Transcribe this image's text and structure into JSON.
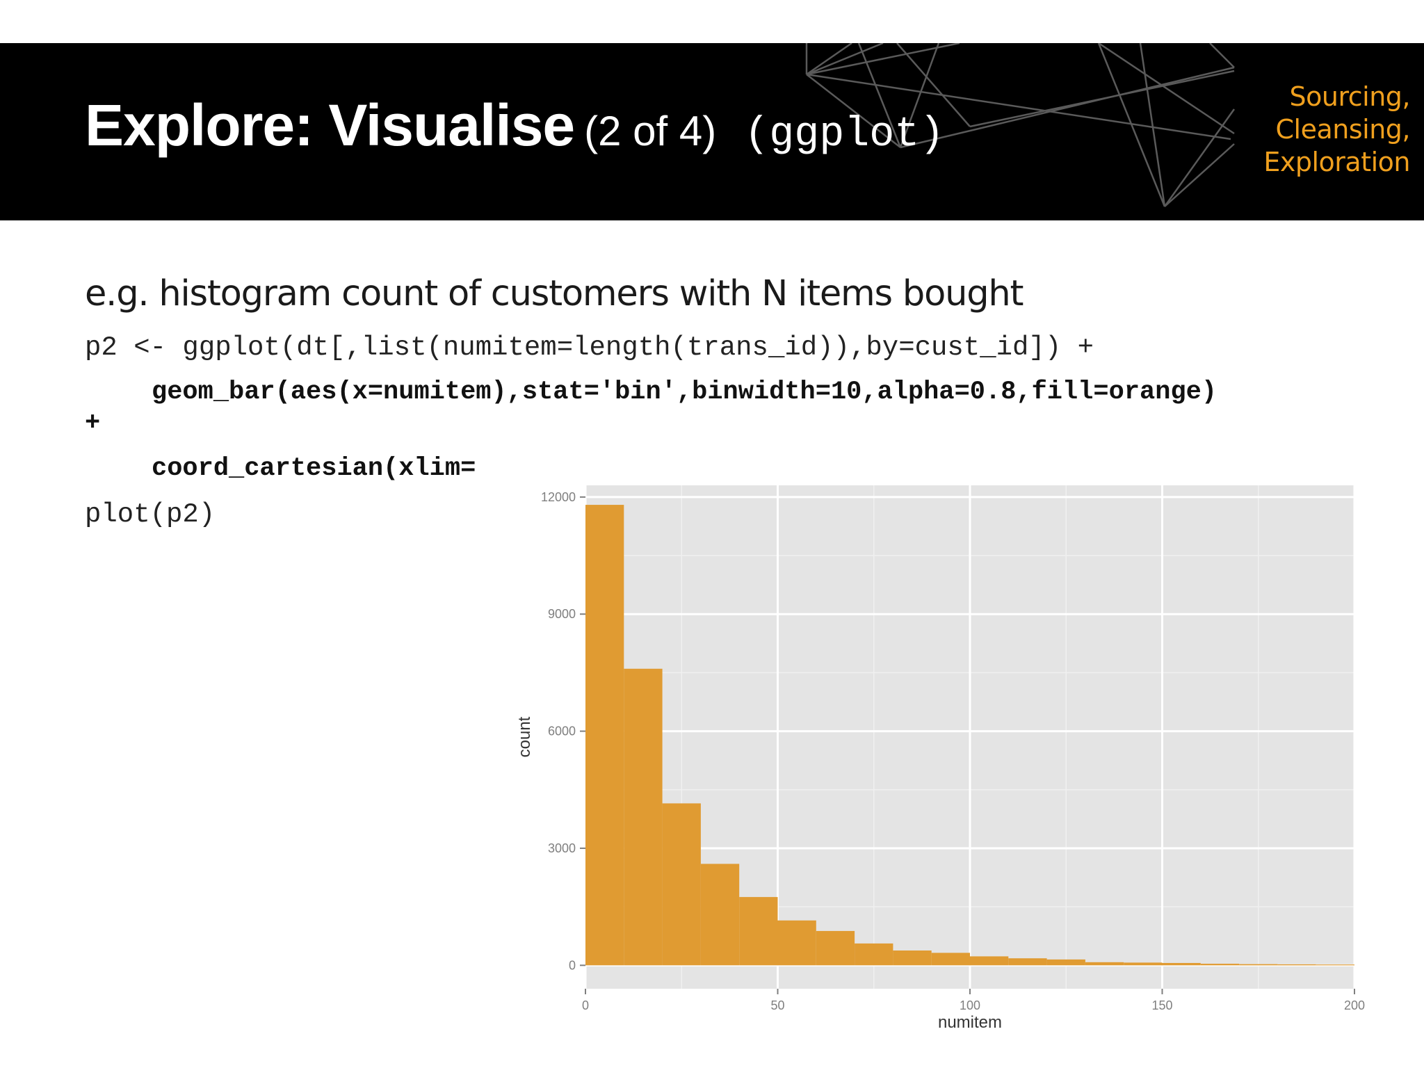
{
  "slide": {
    "title_main": "Explore: Visualise",
    "title_part": "(2 of 4)",
    "title_code": "(ggplot)",
    "section_tag": [
      "Sourcing,",
      "Cleansing,",
      "Exploration"
    ],
    "description": "e.g. histogram count of customers with N items bought"
  },
  "code": {
    "line1": "p2 <- ggplot(dt[,list(numitem=length(trans_id)),by=cust_id]) +",
    "line2": "geom_bar(aes(x=numitem),stat='bin',binwidth=10,alpha=0.8,fill=orange)",
    "line3": "+",
    "line4": "coord_cartesian(xlim=",
    "line5": "plot(p2)"
  },
  "colors": {
    "header_bg": "#000000",
    "accent": "#f0a01e",
    "bar_fill": "#e09b32",
    "panel_bg": "#e4e4e4",
    "grid": "#ffffff"
  },
  "chart_data": {
    "type": "bar",
    "xlabel": "numitem",
    "ylabel": "count",
    "xlim": [
      0,
      200
    ],
    "ylim": [
      -600,
      12300
    ],
    "x_ticks": [
      0,
      50,
      100,
      150,
      200
    ],
    "y_ticks": [
      0,
      3000,
      6000,
      9000,
      12000
    ],
    "binwidth": 10,
    "bins": [
      {
        "x0": 0,
        "x1": 10,
        "count": 11800
      },
      {
        "x0": 10,
        "x1": 20,
        "count": 7600
      },
      {
        "x0": 20,
        "x1": 30,
        "count": 4150
      },
      {
        "x0": 30,
        "x1": 40,
        "count": 2600
      },
      {
        "x0": 40,
        "x1": 50,
        "count": 1750
      },
      {
        "x0": 50,
        "x1": 60,
        "count": 1150
      },
      {
        "x0": 60,
        "x1": 70,
        "count": 880
      },
      {
        "x0": 70,
        "x1": 80,
        "count": 560
      },
      {
        "x0": 80,
        "x1": 90,
        "count": 380
      },
      {
        "x0": 90,
        "x1": 100,
        "count": 320
      },
      {
        "x0": 100,
        "x1": 110,
        "count": 230
      },
      {
        "x0": 110,
        "x1": 120,
        "count": 180
      },
      {
        "x0": 120,
        "x1": 130,
        "count": 150
      },
      {
        "x0": 130,
        "x1": 140,
        "count": 80
      },
      {
        "x0": 140,
        "x1": 150,
        "count": 70
      },
      {
        "x0": 150,
        "x1": 160,
        "count": 60
      },
      {
        "x0": 160,
        "x1": 170,
        "count": 40
      },
      {
        "x0": 170,
        "x1": 180,
        "count": 30
      },
      {
        "x0": 180,
        "x1": 190,
        "count": 25
      },
      {
        "x0": 190,
        "x1": 200,
        "count": 20
      }
    ],
    "grid": true,
    "legend": "none"
  }
}
